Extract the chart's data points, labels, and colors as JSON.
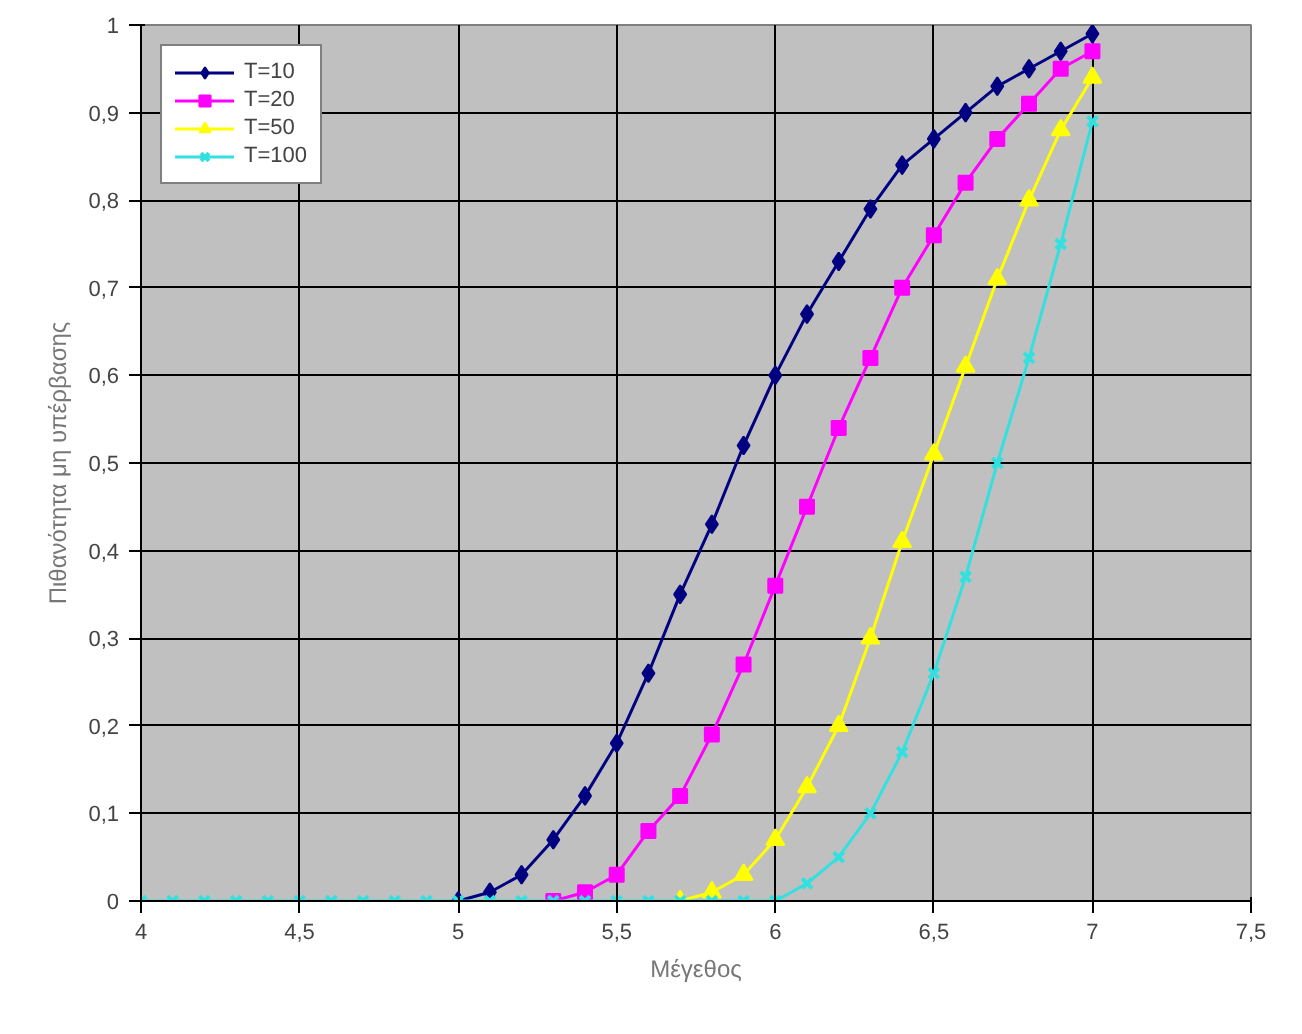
{
  "chart_data": {
    "type": "line",
    "xlabel": "Μέγεθος",
    "ylabel": "Πιθανότητα μη υπέρβασης",
    "x": [
      4.0,
      4.1,
      4.2,
      4.3,
      4.4,
      4.5,
      4.6,
      4.7,
      4.8,
      4.9,
      5.0,
      5.1,
      5.2,
      5.3,
      5.4,
      5.5,
      5.6,
      5.7,
      5.8,
      5.9,
      6.0,
      6.1,
      6.2,
      6.3,
      6.4,
      6.5,
      6.6,
      6.7,
      6.8,
      6.9,
      7.0
    ],
    "series": [
      {
        "name": "T=10",
        "color": "#000080",
        "marker": "diamond",
        "values": [
          null,
          null,
          null,
          null,
          null,
          null,
          null,
          null,
          null,
          null,
          0,
          0.01,
          0.03,
          0.07,
          0.12,
          0.18,
          0.26,
          0.35,
          0.43,
          0.52,
          0.6,
          0.67,
          0.73,
          0.79,
          0.84,
          0.87,
          0.9,
          0.93,
          0.95,
          0.97,
          0.99
        ]
      },
      {
        "name": "T=20",
        "color": "#ff00ff",
        "marker": "square",
        "values": [
          null,
          null,
          null,
          null,
          null,
          null,
          null,
          null,
          null,
          null,
          null,
          null,
          null,
          0,
          0.01,
          0.03,
          0.08,
          0.12,
          0.19,
          0.27,
          0.36,
          0.45,
          0.54,
          0.62,
          0.7,
          0.76,
          0.82,
          0.87,
          0.91,
          0.95,
          0.97
        ]
      },
      {
        "name": "T=50",
        "color": "#ffff00",
        "marker": "triangle",
        "values": [
          null,
          null,
          null,
          null,
          null,
          null,
          null,
          null,
          null,
          null,
          null,
          null,
          null,
          null,
          null,
          null,
          null,
          0,
          0.01,
          0.03,
          0.07,
          0.13,
          0.2,
          0.3,
          0.41,
          0.51,
          0.61,
          0.71,
          0.8,
          0.88,
          0.94
        ]
      },
      {
        "name": "T=100",
        "color": "#33e0e0",
        "marker": "cross",
        "values": [
          0,
          0,
          0,
          0,
          0,
          0,
          0,
          0,
          0,
          0,
          0,
          0,
          0,
          0,
          0,
          0,
          0,
          0,
          0,
          0,
          0,
          0.02,
          0.05,
          0.1,
          0.17,
          0.26,
          0.37,
          0.5,
          0.62,
          0.75,
          0.89
        ]
      }
    ],
    "xlim": [
      4,
      7.5
    ],
    "ylim": [
      0,
      1
    ],
    "xticks": [
      4,
      {
        "value": 4.5,
        "label": "4,5"
      },
      5,
      {
        "value": 5.5,
        "label": "5,5"
      },
      6,
      {
        "value": 6.5,
        "label": "6,5"
      },
      7,
      {
        "value": 7.5,
        "label": "7,5"
      }
    ],
    "yticks": [
      0,
      {
        "value": 0.1,
        "label": "0,1"
      },
      {
        "value": 0.2,
        "label": "0,2"
      },
      {
        "value": 0.3,
        "label": "0,3"
      },
      {
        "value": 0.4,
        "label": "0,4"
      },
      {
        "value": 0.5,
        "label": "0,5"
      },
      {
        "value": 0.6,
        "label": "0,6"
      },
      {
        "value": 0.7,
        "label": "0,7"
      },
      {
        "value": 0.8,
        "label": "0,8"
      },
      {
        "value": 0.9,
        "label": "0,9"
      },
      1
    ],
    "grid": true,
    "legend": "top left",
    "line_style": "solid"
  }
}
